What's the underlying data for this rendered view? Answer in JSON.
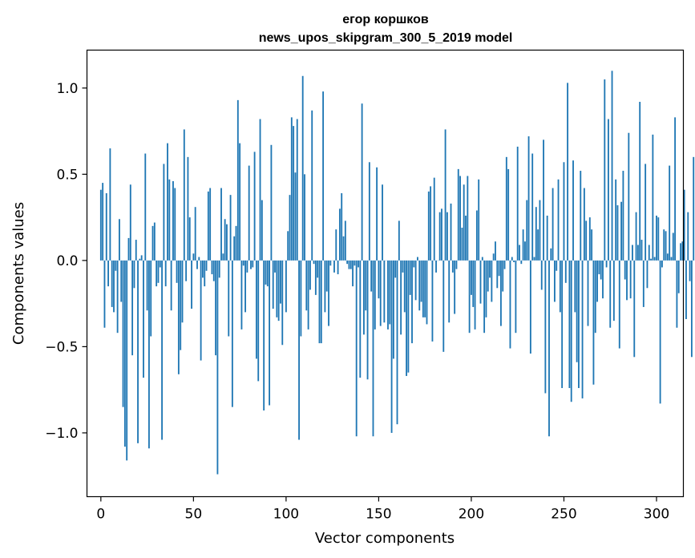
{
  "chart_data": {
    "type": "bar",
    "title": "егор коршков",
    "subtitle": "news_upos_skipgram_300_5_2019 model",
    "xlabel": "Vector components",
    "ylabel": "Components values",
    "xlim": [
      -7.5,
      314.5
    ],
    "ylim": [
      -1.37,
      1.22
    ],
    "xticks": [
      0,
      50,
      100,
      150,
      200,
      250,
      300
    ],
    "xtick_labels": [
      "0",
      "50",
      "100",
      "150",
      "200",
      "250",
      "300"
    ],
    "yticks": [
      -1.0,
      -0.5,
      0.0,
      0.5,
      1.0
    ],
    "ytick_labels": [
      "−1.0",
      "−0.5",
      "0.0",
      "0.5",
      "1.0"
    ],
    "bar_color": "#1f77b4",
    "grid": false,
    "values": [
      0.41,
      0.45,
      -0.39,
      0.39,
      -0.15,
      0.65,
      -0.27,
      -0.3,
      -0.06,
      -0.42,
      0.24,
      -0.24,
      -0.85,
      -1.08,
      -1.16,
      0.13,
      0.44,
      -0.55,
      -0.16,
      0.12,
      -1.06,
      0.01,
      0.03,
      -0.68,
      0.62,
      -0.29,
      -1.09,
      -0.44,
      0.2,
      0.22,
      -0.15,
      -0.13,
      -0.04,
      -1.04,
      0.56,
      -0.15,
      0.68,
      0.47,
      -0.29,
      0.46,
      0.42,
      -0.13,
      -0.66,
      -0.52,
      -0.36,
      0.76,
      -0.12,
      0.6,
      0.25,
      -0.28,
      0.04,
      0.31,
      -0.05,
      0.02,
      -0.58,
      -0.1,
      -0.15,
      -0.06,
      0.4,
      0.42,
      -0.08,
      -0.12,
      -0.55,
      -1.24,
      -0.1,
      0.42,
      0.04,
      0.24,
      0.21,
      -0.44,
      0.38,
      -0.85,
      0.14,
      0.2,
      0.93,
      0.68,
      -0.4,
      -0.03,
      -0.3,
      -0.07,
      0.55,
      -0.05,
      -0.04,
      0.63,
      -0.57,
      -0.7,
      0.82,
      0.35,
      -0.87,
      -0.14,
      -0.15,
      -0.84,
      0.67,
      -0.28,
      -0.07,
      -0.33,
      -0.35,
      -0.25,
      -0.49,
      0.0,
      -0.3,
      0.17,
      0.38,
      0.83,
      0.78,
      0.51,
      0.82,
      -1.04,
      -0.44,
      1.07,
      0.5,
      -0.29,
      -0.4,
      -0.17,
      0.87,
      -0.02,
      -0.2,
      -0.1,
      -0.48,
      -0.48,
      0.98,
      -0.3,
      -0.18,
      -0.38,
      -0.03,
      0.0,
      -0.07,
      0.18,
      -0.08,
      0.3,
      0.39,
      0.14,
      0.23,
      -0.02,
      -0.05,
      -0.05,
      -0.15,
      -0.03,
      -1.02,
      -0.04,
      -0.68,
      0.91,
      -0.43,
      -0.29,
      -0.69,
      0.57,
      -0.18,
      -1.02,
      -0.4,
      0.54,
      -0.22,
      -0.38,
      0.44,
      -0.36,
      0.0,
      -0.4,
      -0.37,
      -1.0,
      -0.57,
      -0.1,
      -0.95,
      0.23,
      -0.43,
      -0.07,
      -0.3,
      -0.67,
      -0.65,
      -0.2,
      -0.48,
      -0.04,
      -0.23,
      0.02,
      -0.29,
      -0.24,
      -0.33,
      -0.33,
      -0.37,
      0.4,
      0.43,
      -0.47,
      0.48,
      -0.07,
      0.0,
      0.28,
      0.3,
      -0.53,
      0.76,
      0.28,
      -0.36,
      0.33,
      -0.07,
      -0.31,
      -0.05,
      0.53,
      0.49,
      0.19,
      0.44,
      0.26,
      0.49,
      -0.42,
      -0.2,
      -0.27,
      -0.4,
      0.29,
      0.47,
      -0.25,
      0.02,
      -0.42,
      -0.33,
      -0.18,
      -0.1,
      -0.24,
      0.04,
      0.11,
      -0.16,
      -0.09,
      -0.38,
      -0.18,
      -0.05,
      0.6,
      0.53,
      -0.51,
      0.02,
      -0.01,
      -0.42,
      0.66,
      0.09,
      -0.02,
      0.18,
      0.11,
      0.35,
      0.72,
      -0.54,
      0.62,
      0.02,
      0.31,
      0.18,
      0.35,
      -0.17,
      0.7,
      -0.77,
      0.26,
      -1.02,
      0.07,
      0.42,
      -0.24,
      -0.06,
      0.47,
      -0.3,
      -0.74,
      0.57,
      -0.13,
      1.03,
      -0.74,
      -0.82,
      0.58,
      -0.3,
      -0.59,
      -0.74,
      0.52,
      -0.8,
      0.42,
      0.23,
      -0.38,
      0.25,
      0.18,
      -0.72,
      -0.42,
      -0.24,
      -0.08,
      -0.11,
      -0.22,
      1.05,
      -0.04,
      0.82,
      -0.39,
      1.1,
      -0.35,
      0.47,
      0.32,
      -0.51,
      0.34,
      0.52,
      -0.11,
      -0.23,
      0.74,
      -0.22,
      0.09,
      -0.56,
      0.28,
      0.09,
      0.92,
      0.12,
      -0.27,
      0.56,
      -0.16,
      0.09,
      0.01,
      0.73,
      0.02,
      0.26,
      0.25,
      -0.83,
      -0.04,
      0.18,
      0.17,
      0.04,
      0.55,
      0.02,
      0.16,
      0.83,
      -0.39,
      -0.19,
      0.1,
      0.11,
      0.41,
      -0.34,
      0.28,
      -0.12,
      -0.56,
      0.6
    ]
  }
}
